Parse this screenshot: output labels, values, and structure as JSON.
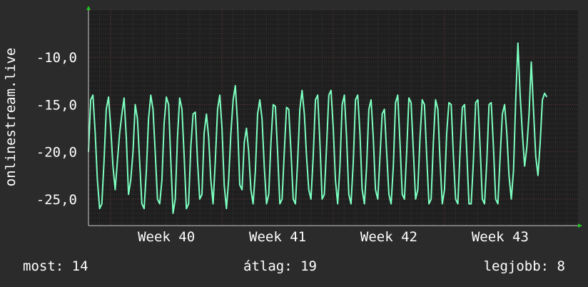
{
  "colors": {
    "background": "#2b2b2b",
    "plot_background": "#1f1f1f",
    "grid_minor": "#3a3a3a",
    "grid_major": "#6a3a3a",
    "line": "#7dffc0",
    "text": "#ffffff",
    "axis_arrow": "#22c422"
  },
  "stats": {
    "now": "most: 14",
    "avg": "átlag: 19",
    "best": "legjobb: 8"
  },
  "chart_data": {
    "type": "line",
    "ylabel": "onlinestream.live",
    "xlabel": "",
    "x_ticks": [
      "Week 40",
      "Week 41",
      "Week 42",
      "Week 43"
    ],
    "y_ticks": [
      "-10,0",
      "-15,0",
      "-20,0",
      "-25,0"
    ],
    "y_tick_values": [
      -10,
      -15,
      -20,
      -25
    ],
    "ylim": [
      -27.8,
      -5.0
    ],
    "x_range_weeks": [
      39.3,
      43.7
    ],
    "grid": true,
    "series": [
      {
        "x_unit": "week",
        "y_unit": "value",
        "points": [
          [
            39.3,
            -20.0
          ],
          [
            39.32,
            -14.5
          ],
          [
            39.34,
            -14.0
          ],
          [
            39.36,
            -18.0
          ],
          [
            39.38,
            -23.0
          ],
          [
            39.4,
            -26.0
          ],
          [
            39.42,
            -25.5
          ],
          [
            39.44,
            -21.0
          ],
          [
            39.46,
            -15.5
          ],
          [
            39.48,
            -14.2
          ],
          [
            39.5,
            -17.5
          ],
          [
            39.52,
            -21.5
          ],
          [
            39.54,
            -24.0
          ],
          [
            39.56,
            -21.0
          ],
          [
            39.58,
            -18.0
          ],
          [
            39.6,
            -16.0
          ],
          [
            39.62,
            -14.3
          ],
          [
            39.64,
            -18.5
          ],
          [
            39.66,
            -24.5
          ],
          [
            39.68,
            -23.0
          ],
          [
            39.7,
            -20.0
          ],
          [
            39.72,
            -15.0
          ],
          [
            39.74,
            -16.5
          ],
          [
            39.76,
            -21.0
          ],
          [
            39.78,
            -25.5
          ],
          [
            39.8,
            -26.0
          ],
          [
            39.82,
            -22.0
          ],
          [
            39.84,
            -16.5
          ],
          [
            39.86,
            -14.0
          ],
          [
            39.88,
            -15.5
          ],
          [
            39.9,
            -20.0
          ],
          [
            39.92,
            -25.0
          ],
          [
            39.94,
            -25.5
          ],
          [
            39.96,
            -23.0
          ],
          [
            39.98,
            -17.0
          ],
          [
            40.0,
            -14.2
          ],
          [
            40.02,
            -15.0
          ],
          [
            40.04,
            -21.0
          ],
          [
            40.06,
            -26.5
          ],
          [
            40.08,
            -25.0
          ],
          [
            40.1,
            -18.5
          ],
          [
            40.12,
            -14.3
          ],
          [
            40.14,
            -15.5
          ],
          [
            40.16,
            -20.5
          ],
          [
            40.18,
            -26.0
          ],
          [
            40.2,
            -25.5
          ],
          [
            40.22,
            -19.5
          ],
          [
            40.24,
            -16.0
          ],
          [
            40.26,
            -15.8
          ],
          [
            40.28,
            -21.0
          ],
          [
            40.3,
            -25.0
          ],
          [
            40.32,
            -24.5
          ],
          [
            40.34,
            -18.0
          ],
          [
            40.36,
            -16.0
          ],
          [
            40.38,
            -18.5
          ],
          [
            40.4,
            -23.0
          ],
          [
            40.42,
            -25.5
          ],
          [
            40.44,
            -21.0
          ],
          [
            40.46,
            -15.5
          ],
          [
            40.48,
            -14.0
          ],
          [
            40.5,
            -17.5
          ],
          [
            40.52,
            -23.5
          ],
          [
            40.54,
            -26.0
          ],
          [
            40.56,
            -23.0
          ],
          [
            40.58,
            -18.0
          ],
          [
            40.6,
            -14.5
          ],
          [
            40.62,
            -13.0
          ],
          [
            40.64,
            -17.0
          ],
          [
            40.66,
            -23.5
          ],
          [
            40.68,
            -24.0
          ],
          [
            40.7,
            -19.0
          ],
          [
            40.72,
            -17.5
          ],
          [
            40.74,
            -20.0
          ],
          [
            40.76,
            -24.0
          ],
          [
            40.78,
            -25.5
          ],
          [
            40.8,
            -22.0
          ],
          [
            40.82,
            -16.0
          ],
          [
            40.84,
            -14.5
          ],
          [
            40.86,
            -16.5
          ],
          [
            40.88,
            -21.5
          ],
          [
            40.9,
            -25.5
          ],
          [
            40.92,
            -24.5
          ],
          [
            40.94,
            -19.0
          ],
          [
            40.96,
            -15.0
          ],
          [
            40.98,
            -15.2
          ],
          [
            41.0,
            -20.0
          ],
          [
            41.02,
            -25.5
          ],
          [
            41.04,
            -25.0
          ],
          [
            41.06,
            -20.0
          ],
          [
            41.08,
            -15.3
          ],
          [
            41.1,
            -15.5
          ],
          [
            41.12,
            -20.0
          ],
          [
            41.14,
            -25.0
          ],
          [
            41.16,
            -25.5
          ],
          [
            41.18,
            -21.0
          ],
          [
            41.2,
            -15.5
          ],
          [
            41.22,
            -13.5
          ],
          [
            41.24,
            -16.0
          ],
          [
            41.26,
            -20.5
          ],
          [
            41.28,
            -24.0
          ],
          [
            41.3,
            -25.0
          ],
          [
            41.32,
            -20.5
          ],
          [
            41.34,
            -14.5
          ],
          [
            41.36,
            -14.0
          ],
          [
            41.38,
            -19.0
          ],
          [
            41.4,
            -25.0
          ],
          [
            41.42,
            -24.5
          ],
          [
            41.44,
            -19.5
          ],
          [
            41.46,
            -14.0
          ],
          [
            41.48,
            -13.5
          ],
          [
            41.5,
            -17.5
          ],
          [
            41.52,
            -23.0
          ],
          [
            41.54,
            -25.5
          ],
          [
            41.56,
            -21.5
          ],
          [
            41.58,
            -15.0
          ],
          [
            41.6,
            -14.0
          ],
          [
            41.62,
            -18.5
          ],
          [
            41.64,
            -24.5
          ],
          [
            41.66,
            -25.5
          ],
          [
            41.68,
            -21.0
          ],
          [
            41.7,
            -14.5
          ],
          [
            41.72,
            -14.0
          ],
          [
            41.74,
            -18.0
          ],
          [
            41.76,
            -24.0
          ],
          [
            41.78,
            -25.5
          ],
          [
            41.8,
            -21.5
          ],
          [
            41.82,
            -15.5
          ],
          [
            41.84,
            -14.5
          ],
          [
            41.86,
            -18.5
          ],
          [
            41.88,
            -24.0
          ],
          [
            41.9,
            -25.0
          ],
          [
            41.92,
            -20.5
          ],
          [
            41.94,
            -16.0
          ],
          [
            41.96,
            -15.5
          ],
          [
            41.98,
            -20.0
          ],
          [
            42.0,
            -24.5
          ],
          [
            42.02,
            -25.5
          ],
          [
            42.04,
            -21.5
          ],
          [
            42.06,
            -14.8
          ],
          [
            42.08,
            -14.0
          ],
          [
            42.1,
            -19.0
          ],
          [
            42.12,
            -24.5
          ],
          [
            42.14,
            -25.0
          ],
          [
            42.16,
            -20.0
          ],
          [
            42.18,
            -14.3
          ],
          [
            42.2,
            -14.8
          ],
          [
            42.22,
            -20.0
          ],
          [
            42.24,
            -25.0
          ],
          [
            42.26,
            -24.0
          ],
          [
            42.28,
            -18.5
          ],
          [
            42.3,
            -14.5
          ],
          [
            42.32,
            -15.0
          ],
          [
            42.34,
            -20.5
          ],
          [
            42.36,
            -25.5
          ],
          [
            42.38,
            -25.0
          ],
          [
            42.4,
            -19.0
          ],
          [
            42.42,
            -14.5
          ],
          [
            42.44,
            -15.5
          ],
          [
            42.46,
            -21.0
          ],
          [
            42.48,
            -25.5
          ],
          [
            42.5,
            -24.0
          ],
          [
            42.52,
            -18.0
          ],
          [
            42.54,
            -14.8
          ],
          [
            42.56,
            -15.0
          ],
          [
            42.58,
            -20.5
          ],
          [
            42.6,
            -25.0
          ],
          [
            42.62,
            -25.5
          ],
          [
            42.64,
            -20.0
          ],
          [
            42.66,
            -15.3
          ],
          [
            42.68,
            -15.0
          ],
          [
            42.7,
            -20.0
          ],
          [
            42.72,
            -25.5
          ],
          [
            42.74,
            -25.5
          ],
          [
            42.76,
            -21.0
          ],
          [
            42.78,
            -14.8
          ],
          [
            42.8,
            -14.5
          ],
          [
            42.82,
            -19.5
          ],
          [
            42.84,
            -25.0
          ],
          [
            42.86,
            -25.5
          ],
          [
            42.88,
            -21.0
          ],
          [
            42.9,
            -15.0
          ],
          [
            42.92,
            -14.8
          ],
          [
            42.94,
            -19.5
          ],
          [
            42.96,
            -25.0
          ],
          [
            42.98,
            -25.5
          ],
          [
            43.0,
            -20.5
          ],
          [
            43.02,
            -16.0
          ],
          [
            43.04,
            -15.0
          ],
          [
            43.06,
            -18.0
          ],
          [
            43.08,
            -22.5
          ],
          [
            43.1,
            -25.0
          ],
          [
            43.12,
            -22.0
          ],
          [
            43.14,
            -14.5
          ],
          [
            43.16,
            -8.5
          ],
          [
            43.18,
            -14.0
          ],
          [
            43.2,
            -18.0
          ],
          [
            43.22,
            -21.5
          ],
          [
            43.24,
            -19.5
          ],
          [
            43.26,
            -16.0
          ],
          [
            43.28,
            -10.5
          ],
          [
            43.3,
            -15.5
          ],
          [
            43.32,
            -20.5
          ],
          [
            43.34,
            -22.5
          ],
          [
            43.36,
            -19.0
          ],
          [
            43.38,
            -14.5
          ],
          [
            43.4,
            -13.8
          ],
          [
            43.42,
            -14.2
          ]
        ]
      }
    ]
  }
}
